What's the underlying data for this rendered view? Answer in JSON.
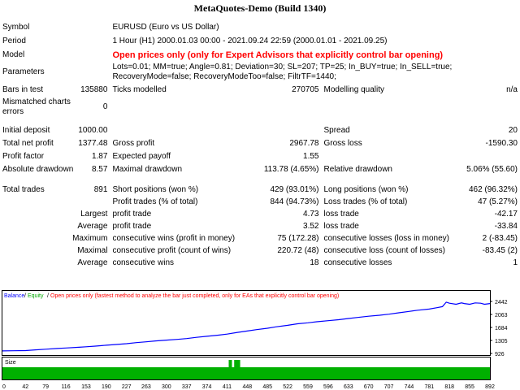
{
  "title": "MetaQuotes-Demo (Build 1340)",
  "report": {
    "symbol_label": "Symbol",
    "symbol_value": "EURUSD (Euro vs US Dollar)",
    "period_label": "Period",
    "period_value": "1 Hour (H1) 2000.01.03 00:00 - 2021.09.24 22:59 (2000.01.01 - 2021.09.25)",
    "model_label": "Model",
    "model_value": "Open prices only (only for Expert Advisors that explicitly control bar opening)",
    "params_label": "Parameters",
    "params_value": "Lots=0.01; MM=true; Angle=0.81; Deviation=30; SL=207; TP=25; In_BUY=true; In_SELL=true; RecoveryMode=false; RecoveryModeToo=false; FiltrTF=1440;",
    "bars_label": "Bars in test",
    "bars_value": "135880",
    "ticks_label": "Ticks modelled",
    "ticks_value": "270705",
    "quality_label": "Modelling quality",
    "quality_value": "n/a",
    "mismatch_label": "Mismatched charts errors",
    "mismatch_value": "0",
    "deposit_label": "Initial deposit",
    "deposit_value": "1000.00",
    "spread_label": "Spread",
    "spread_value": "20",
    "netprofit_label": "Total net profit",
    "netprofit_value": "1377.48",
    "grossprofit_label": "Gross profit",
    "grossprofit_value": "2967.78",
    "grossloss_label": "Gross loss",
    "grossloss_value": "-1590.30",
    "pf_label": "Profit factor",
    "pf_value": "1.87",
    "payoff_label": "Expected payoff",
    "payoff_value": "1.55",
    "absdd_label": "Absolute drawdown",
    "absdd_value": "8.57",
    "maxdd_label": "Maximal drawdown",
    "maxdd_value": "113.78 (4.65%)",
    "reldd_label": "Relative drawdown",
    "reldd_value": "5.06% (55.60)",
    "trades_label": "Total trades",
    "trades_value": "891",
    "short_label": "Short positions (won %)",
    "short_value": "429 (93.01%)",
    "long_label": "Long positions (won %)",
    "long_value": "462 (96.32%)",
    "pt_label": "Profit trades (% of total)",
    "pt_value": "844 (94.73%)",
    "lt_label": "Loss trades (% of total)",
    "lt_value": "47 (5.27%)",
    "largest_label": "Largest",
    "largest_pt_label": "profit trade",
    "largest_pt_value": "4.73",
    "largest_lt_label": "loss trade",
    "largest_lt_value": "-42.17",
    "average_label": "Average",
    "average_pt_label": "profit trade",
    "average_pt_value": "3.52",
    "average_lt_label": "loss trade",
    "average_lt_value": "-33.84",
    "maximum_label": "Maximum",
    "maximum_w_label": "consecutive wins (profit in money)",
    "maximum_w_value": "75 (172.28)",
    "maximum_l_label": "consecutive losses (loss in money)",
    "maximum_l_value": "2 (-83.45)",
    "maximal_label": "Maximal",
    "maximal_w_label": "consecutive profit (count of wins)",
    "maximal_w_value": "220.72 (48)",
    "maximal_l_label": "consecutive loss (count of losses)",
    "maximal_l_value": "-83.45 (2)",
    "avgc_label": "Average",
    "avgc_w_label": "consecutive wins",
    "avgc_w_value": "18",
    "avgc_l_label": "consecutive losses",
    "avgc_l_value": "1"
  },
  "chart_data": {
    "type": "line",
    "legend": [
      {
        "text": "Balance",
        "color": "#0000ff"
      },
      {
        "text": "Equity",
        "color": "#00aa00"
      },
      {
        "text": "Open prices only (fastest method to analyze the bar just completed, only for EAs that explicitly control bar opening)",
        "color": "#ff0000"
      }
    ],
    "y_ticks": [
      926,
      1305,
      1684,
      2063,
      2442
    ],
    "x_ticks": [
      0,
      42,
      79,
      116,
      153,
      190,
      227,
      263,
      300,
      337,
      374,
      411,
      448,
      485,
      522,
      559,
      596,
      633,
      670,
      707,
      744,
      781,
      818,
      855,
      892
    ],
    "ylim": [
      926,
      2442
    ],
    "xlim": [
      0,
      892
    ],
    "balance": [
      [
        0,
        1000
      ],
      [
        20,
        1005
      ],
      [
        42,
        1010
      ],
      [
        60,
        1030
      ],
      [
        79,
        1050
      ],
      [
        100,
        1070
      ],
      [
        116,
        1085
      ],
      [
        140,
        1105
      ],
      [
        153,
        1120
      ],
      [
        170,
        1140
      ],
      [
        190,
        1165
      ],
      [
        210,
        1190
      ],
      [
        227,
        1210
      ],
      [
        245,
        1240
      ],
      [
        263,
        1265
      ],
      [
        280,
        1290
      ],
      [
        300,
        1315
      ],
      [
        320,
        1335
      ],
      [
        337,
        1360
      ],
      [
        355,
        1395
      ],
      [
        374,
        1425
      ],
      [
        395,
        1460
      ],
      [
        411,
        1490
      ],
      [
        430,
        1540
      ],
      [
        448,
        1580
      ],
      [
        465,
        1620
      ],
      [
        485,
        1660
      ],
      [
        500,
        1700
      ],
      [
        522,
        1745
      ],
      [
        540,
        1790
      ],
      [
        559,
        1820
      ],
      [
        575,
        1850
      ],
      [
        596,
        1880
      ],
      [
        615,
        1910
      ],
      [
        633,
        1945
      ],
      [
        650,
        1975
      ],
      [
        670,
        2010
      ],
      [
        690,
        2040
      ],
      [
        707,
        2070
      ],
      [
        725,
        2110
      ],
      [
        744,
        2150
      ],
      [
        760,
        2185
      ],
      [
        781,
        2220
      ],
      [
        795,
        2260
      ],
      [
        805,
        2290
      ],
      [
        812,
        2420
      ],
      [
        818,
        2390
      ],
      [
        830,
        2360
      ],
      [
        840,
        2400
      ],
      [
        845,
        2380
      ],
      [
        855,
        2360
      ],
      [
        865,
        2400
      ],
      [
        875,
        2390
      ],
      [
        882,
        2360
      ],
      [
        892,
        2380
      ]
    ],
    "size_label": "Size",
    "size_gaps": [
      417,
      427,
      432
    ]
  },
  "colors": {
    "balance": "#0000ff",
    "equity": "#00aa00",
    "size_bar": "#00b000",
    "model_text": "#ff0000"
  }
}
